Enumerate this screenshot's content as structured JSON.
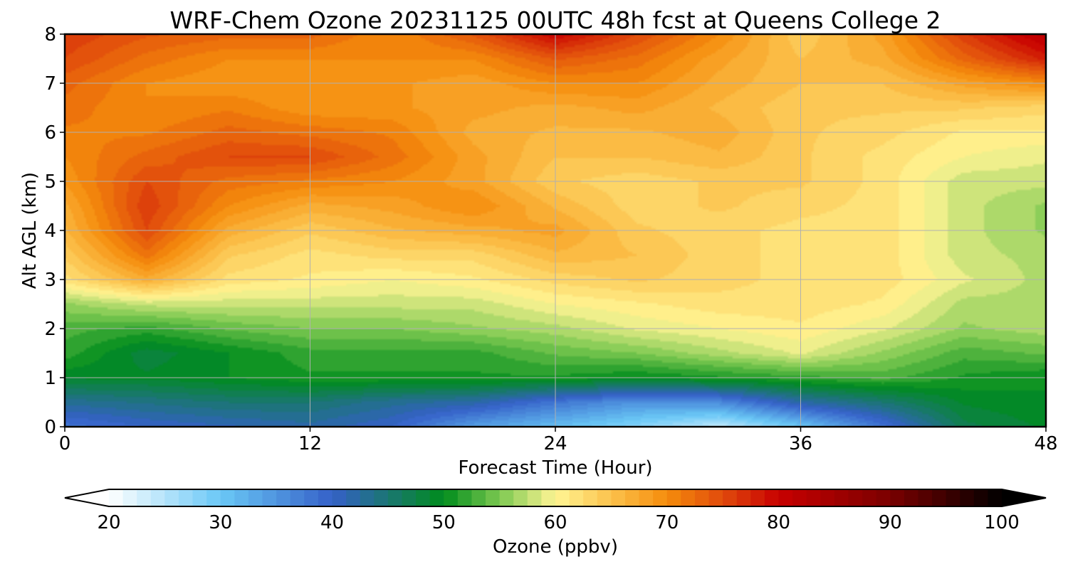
{
  "chart_data": {
    "type": "heatmap",
    "title": "WRF-Chem Ozone  20231125 00UTC 48h fcst at Queens College 2",
    "xlabel": "Forecast Time (Hour)",
    "ylabel": "Alt AGL (km)",
    "xlim": [
      0,
      48
    ],
    "ylim": [
      0,
      8
    ],
    "x_ticks": [
      0,
      12,
      24,
      36,
      48
    ],
    "y_ticks": [
      0,
      1,
      2,
      3,
      4,
      5,
      6,
      7,
      8
    ],
    "grid": true,
    "z_label": "Ozone  (ppbv)",
    "colorbar": {
      "label": "Ozone  (ppbv)",
      "range": [
        20,
        100
      ],
      "ticks": [
        20,
        30,
        40,
        50,
        60,
        70,
        80,
        90,
        100
      ],
      "extend": "both",
      "placement": "bottom",
      "stops": [
        {
          "v": 20,
          "c": "#ffffff"
        },
        {
          "v": 30,
          "c": "#6ac8f6"
        },
        {
          "v": 40,
          "c": "#3560c8"
        },
        {
          "v": 50,
          "c": "#008c1c"
        },
        {
          "v": 55,
          "c": "#7cc850"
        },
        {
          "v": 60,
          "c": "#fff594"
        },
        {
          "v": 65,
          "c": "#fcc24c"
        },
        {
          "v": 70,
          "c": "#f58c0c"
        },
        {
          "v": 75,
          "c": "#e04a0c"
        },
        {
          "v": 80,
          "c": "#c80000"
        },
        {
          "v": 90,
          "c": "#7a0000"
        },
        {
          "v": 100,
          "c": "#000000"
        }
      ]
    },
    "x": [
      0,
      4,
      8,
      12,
      16,
      20,
      24,
      28,
      32,
      36,
      40,
      44,
      48
    ],
    "y": [
      0,
      0.5,
      1,
      1.5,
      2,
      2.5,
      3,
      3.5,
      4,
      4.5,
      5,
      5.5,
      6,
      6.5,
      7,
      7.5,
      8
    ],
    "z": [
      [
        38,
        40,
        41,
        42,
        40,
        34,
        31,
        28,
        24,
        30,
        38,
        47,
        49
      ],
      [
        43,
        44,
        45,
        45,
        43,
        42,
        38,
        35,
        36,
        42,
        45,
        49,
        50
      ],
      [
        49,
        49,
        50,
        51,
        51,
        51,
        51,
        50,
        51,
        52,
        53,
        51,
        50
      ],
      [
        52,
        48,
        50,
        52,
        52,
        52,
        54,
        55,
        57,
        59,
        56,
        53,
        54
      ],
      [
        53,
        52,
        54,
        55,
        55,
        56,
        57,
        59,
        60,
        61,
        59,
        56,
        57
      ],
      [
        56,
        58,
        58,
        58,
        58,
        58,
        60,
        61,
        62,
        62,
        61,
        57,
        57
      ],
      [
        62,
        67,
        62,
        61,
        60,
        61,
        63,
        64,
        63,
        62,
        62,
        59,
        57
      ],
      [
        64,
        72,
        64,
        62,
        63,
        63,
        66,
        65,
        63,
        62,
        62,
        58,
        57
      ],
      [
        66,
        75,
        67,
        64,
        66,
        67,
        68,
        64,
        63,
        62,
        62,
        58,
        56
      ],
      [
        67,
        76,
        70,
        67,
        68,
        70,
        66,
        63,
        64,
        63,
        62,
        58,
        56
      ],
      [
        69,
        75,
        72,
        71,
        70,
        68,
        64,
        63,
        64,
        64,
        62,
        58,
        58
      ],
      [
        70,
        73,
        75,
        75,
        72,
        68,
        65,
        65,
        66,
        64,
        62,
        60,
        59
      ],
      [
        71,
        71,
        73,
        72,
        71,
        67,
        66,
        66,
        67,
        64,
        63,
        61,
        61
      ],
      [
        72,
        70,
        71,
        69,
        69,
        68,
        67,
        68,
        66,
        64,
        64,
        64,
        63
      ],
      [
        73,
        70,
        69,
        69,
        69,
        68,
        70,
        70,
        67,
        65,
        65,
        68,
        70
      ],
      [
        75,
        72,
        70,
        70,
        70,
        70,
        74,
        72,
        68,
        65,
        67,
        73,
        78
      ],
      [
        76,
        74,
        73,
        73,
        70,
        74,
        80,
        75,
        70,
        64,
        68,
        76,
        82
      ]
    ]
  }
}
